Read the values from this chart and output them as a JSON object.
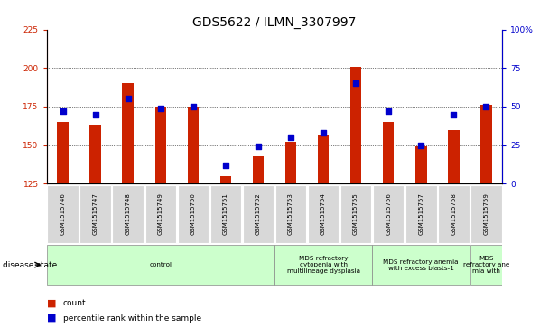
{
  "title": "GDS5622 / ILMN_3307997",
  "samples": [
    "GSM1515746",
    "GSM1515747",
    "GSM1515748",
    "GSM1515749",
    "GSM1515750",
    "GSM1515751",
    "GSM1515752",
    "GSM1515753",
    "GSM1515754",
    "GSM1515755",
    "GSM1515756",
    "GSM1515757",
    "GSM1515758",
    "GSM1515759"
  ],
  "counts": [
    165,
    163,
    190,
    175,
    175,
    130,
    143,
    152,
    157,
    201,
    165,
    149,
    160,
    176
  ],
  "percentiles": [
    47,
    45,
    55,
    49,
    50,
    12,
    24,
    30,
    33,
    65,
    47,
    25,
    45,
    50
  ],
  "y_min": 125,
  "y_max": 225,
  "y_ticks_left": [
    125,
    150,
    175,
    200,
    225
  ],
  "y_ticks_right": [
    0,
    25,
    50,
    75,
    100
  ],
  "bar_color": "#cc2200",
  "dot_color": "#0000cc",
  "bar_width": 0.35,
  "title_fontsize": 10,
  "tick_fontsize": 6.5,
  "groups_info": [
    {
      "start": 0,
      "end": 7,
      "label": "control"
    },
    {
      "start": 7,
      "end": 10,
      "label": "MDS refractory\ncytopenia with\nmultilineage dysplasia"
    },
    {
      "start": 10,
      "end": 13,
      "label": "MDS refractory anemia\nwith excess blasts-1"
    },
    {
      "start": 13,
      "end": 14,
      "label": "MDS\nrefractory ane\nmia with"
    }
  ],
  "group_color": "#ccffcc",
  "sample_box_color": "#d8d8d8",
  "disease_state_label": "disease state"
}
